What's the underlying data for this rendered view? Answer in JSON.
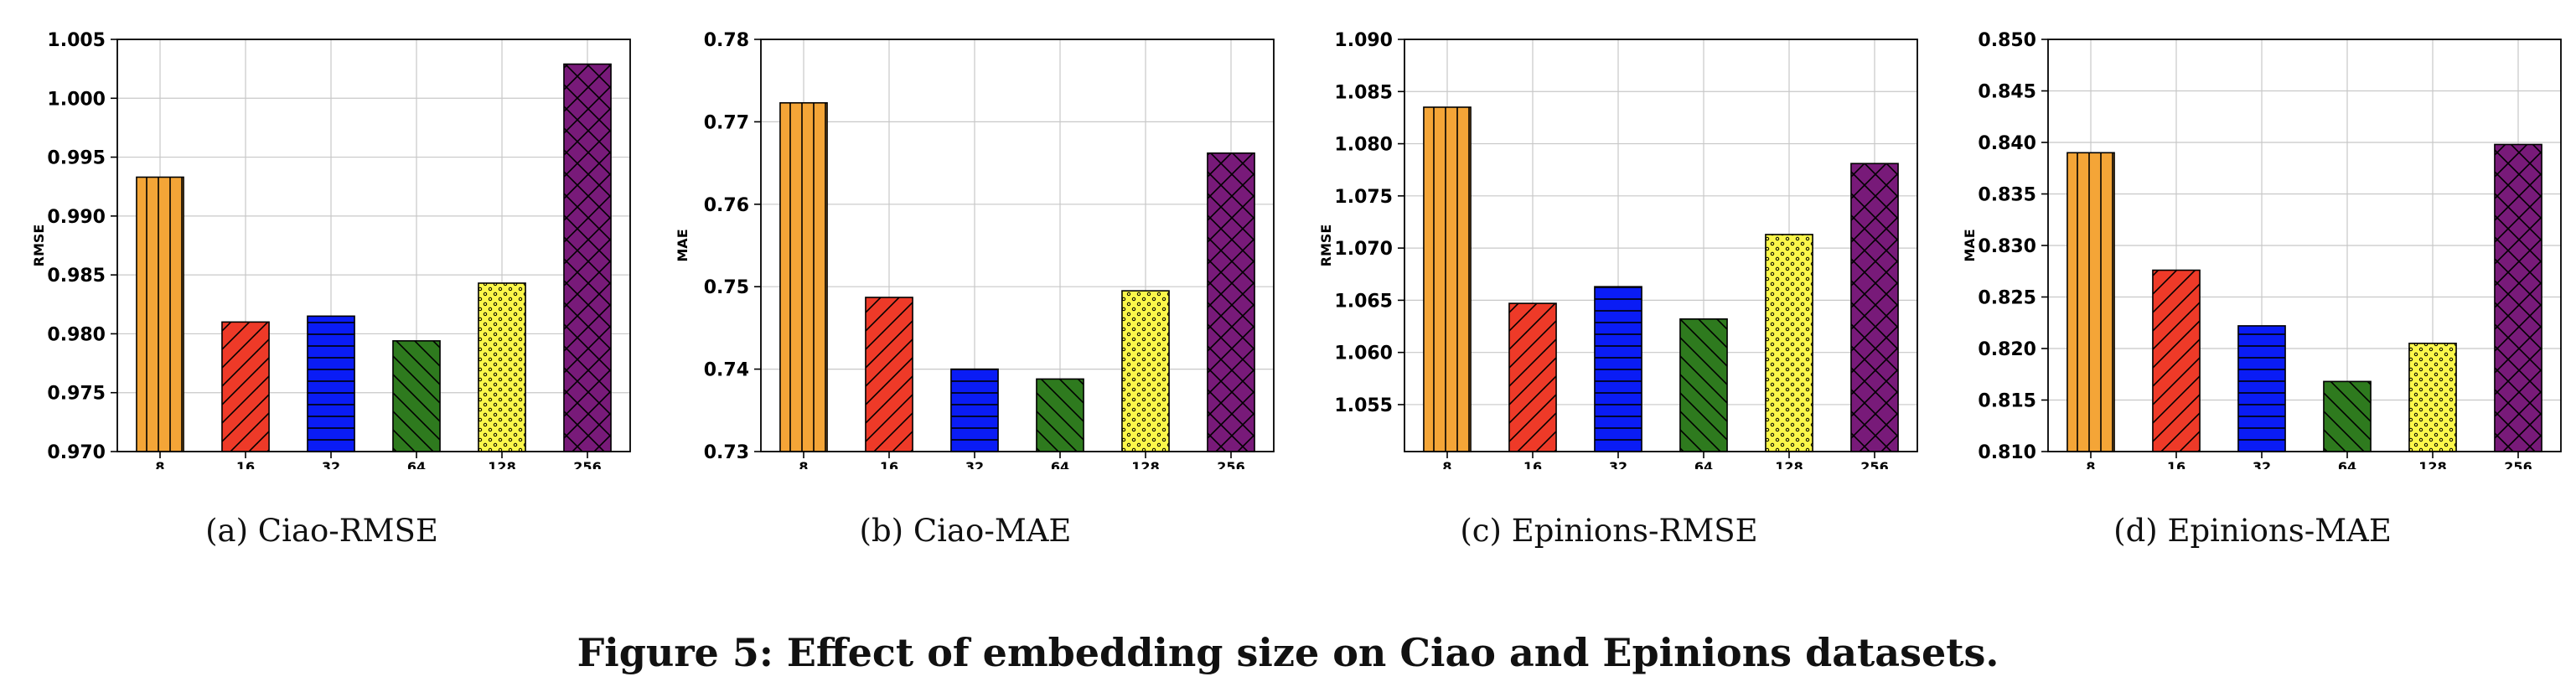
{
  "figure_caption": "Figure 5: Effect of embedding size on Ciao and Epinions datasets.",
  "colors": {
    "bars": [
      "#f4a537",
      "#ee3a28",
      "#0a1cf5",
      "#2e7a1e",
      "#fbf74a",
      "#781a79"
    ],
    "grid": "#c8c8c8",
    "edge": "#000000"
  },
  "chart_data": [
    {
      "type": "bar",
      "caption": "(a)  Ciao-RMSE",
      "ylabel": "RMSE",
      "categories": [
        "8",
        "16",
        "32",
        "64",
        "128",
        "256"
      ],
      "values": [
        0.9933,
        0.981,
        0.9815,
        0.9794,
        0.9843,
        1.0029
      ],
      "ylim": [
        0.97,
        1.005
      ],
      "yticks": [
        "0.970",
        "0.975",
        "0.980",
        "0.985",
        "0.990",
        "0.995",
        "1.000",
        "1.005"
      ],
      "hatches": [
        "vertical",
        "diagonal",
        "horizontal",
        "backslash",
        "dots",
        "crosshatch"
      ],
      "grid": true
    },
    {
      "type": "bar",
      "caption": "(b)  Ciao-MAE",
      "ylabel": "MAE",
      "categories": [
        "8",
        "16",
        "32",
        "64",
        "128",
        "256"
      ],
      "values": [
        0.7723,
        0.7487,
        0.74,
        0.7388,
        0.7495,
        0.7662
      ],
      "ylim": [
        0.73,
        0.78
      ],
      "yticks": [
        "0.73",
        "0.74",
        "0.75",
        "0.76",
        "0.77",
        "0.78"
      ],
      "hatches": [
        "vertical",
        "diagonal",
        "horizontal",
        "backslash",
        "dots",
        "crosshatch"
      ],
      "grid": true
    },
    {
      "type": "bar",
      "caption": "(c)  Epinions-RMSE",
      "ylabel": "RMSE",
      "categories": [
        "8",
        "16",
        "32",
        "64",
        "128",
        "256"
      ],
      "values": [
        1.0835,
        1.0647,
        1.0663,
        1.0632,
        1.0713,
        1.0781
      ],
      "ylim": [
        1.0505,
        1.09
      ],
      "yticks": [
        "1.055",
        "1.060",
        "1.065",
        "1.070",
        "1.075",
        "1.080",
        "1.085",
        "1.090"
      ],
      "hatches": [
        "vertical",
        "diagonal",
        "horizontal",
        "backslash",
        "dots",
        "crosshatch"
      ],
      "grid": true
    },
    {
      "type": "bar",
      "caption": "(d)  Epinions-MAE",
      "ylabel": "MAE",
      "categories": [
        "8",
        "16",
        "32",
        "64",
        "128",
        "256"
      ],
      "values": [
        0.839,
        0.8276,
        0.8222,
        0.8168,
        0.8205,
        0.8398
      ],
      "ylim": [
        0.81,
        0.85
      ],
      "yticks": [
        "0.810",
        "0.815",
        "0.820",
        "0.825",
        "0.830",
        "0.835",
        "0.840",
        "0.845",
        "0.850"
      ],
      "hatches": [
        "vertical",
        "diagonal",
        "horizontal",
        "backslash",
        "dots",
        "crosshatch"
      ],
      "grid": true
    }
  ]
}
